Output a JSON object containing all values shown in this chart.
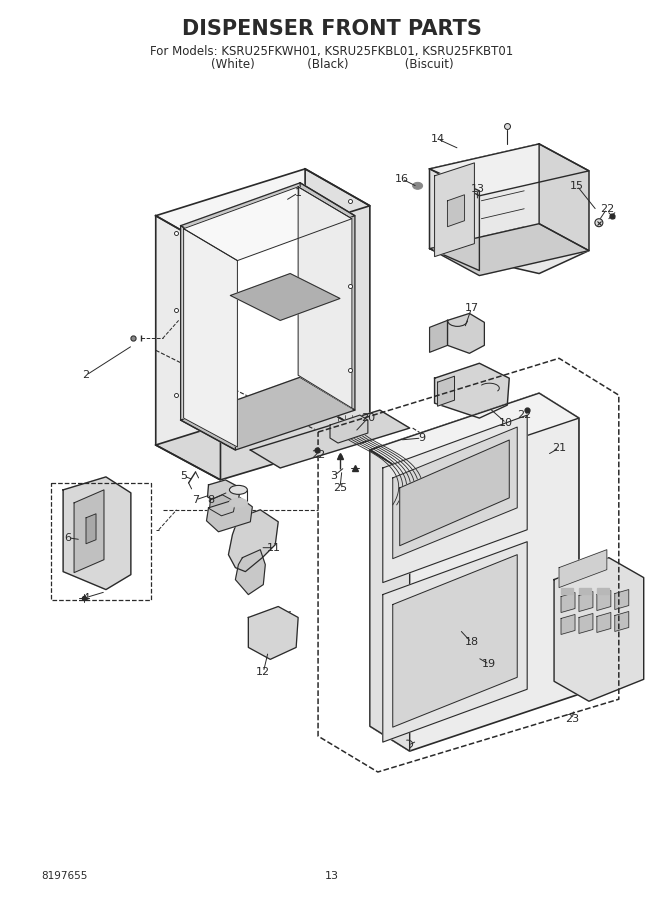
{
  "title": "DISPENSER FRONT PARTS",
  "subtitle_line1": "For Models: KSRU25FKWH01, KSRU25FKBL01, KSRU25FKBT01",
  "subtitle_line2": "(White)              (Black)               (Biscuit)",
  "part_number": "8197655",
  "page_number": "13",
  "bg_color": "#ffffff",
  "lc": "#2a2a2a",
  "title_fontsize": 15,
  "sub_fontsize": 8.5,
  "lbl_fontsize": 8
}
